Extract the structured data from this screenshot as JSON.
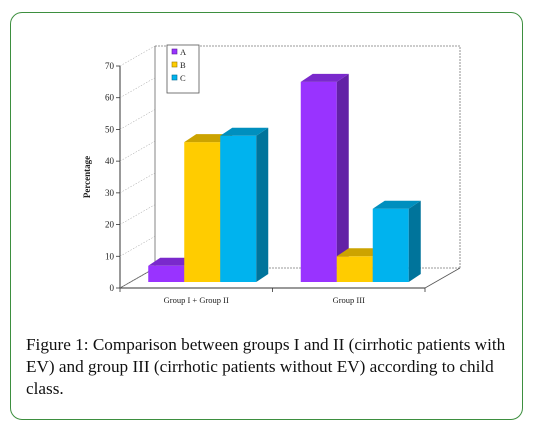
{
  "chart_data": {
    "type": "bar",
    "categories": [
      "Group I + Group II",
      "Group III"
    ],
    "series": [
      {
        "name": "A",
        "values": [
          7,
          65
        ],
        "color": "#9933ff"
      },
      {
        "name": "B",
        "values": [
          46,
          10
        ],
        "color": "#ffcc00"
      },
      {
        "name": "C",
        "values": [
          48,
          25
        ],
        "color": "#00b3ee"
      }
    ],
    "ylabel": "Percentage",
    "xlabel": "",
    "yticks": [
      0,
      10,
      20,
      30,
      40,
      50,
      60,
      70
    ],
    "ylim": [
      0,
      70
    ],
    "legend_position": "top-left",
    "three_d": true,
    "grid": false
  },
  "caption": {
    "label": "Figure 1:",
    "text": "Comparison between groups I and II (cirrhotic patients with EV) and group III (cirrhotic patients without EV) according to child class."
  },
  "colors": {
    "frame": "#3d8f3f"
  }
}
